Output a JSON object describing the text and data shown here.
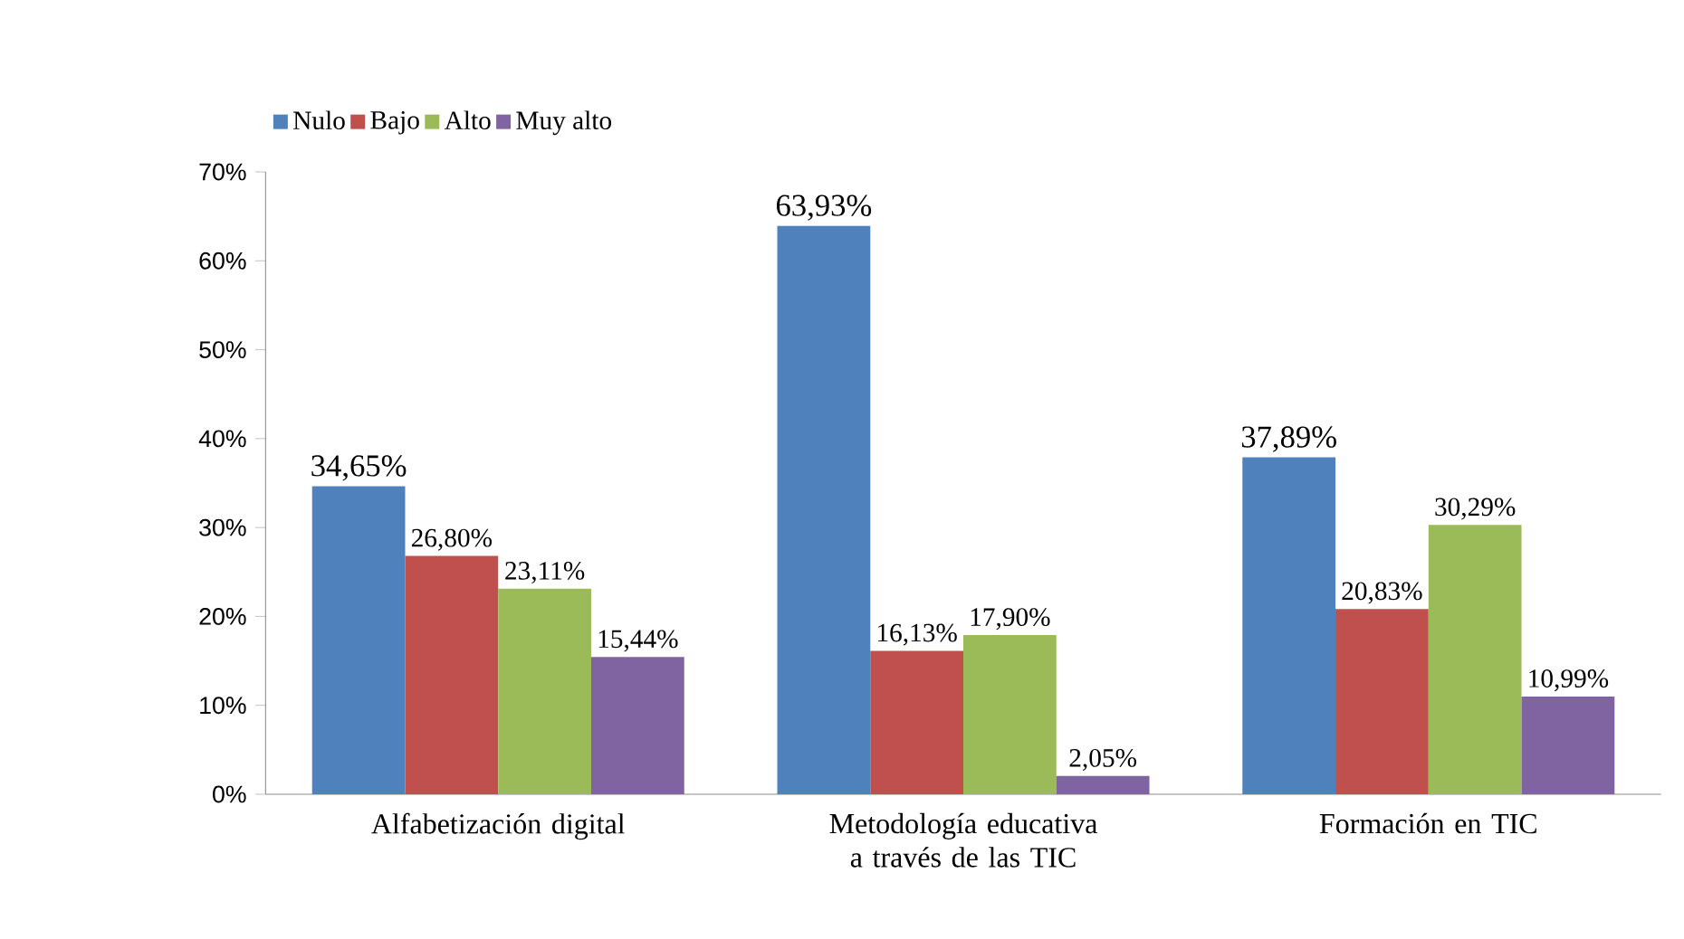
{
  "chart_data": {
    "type": "bar",
    "categories": [
      "Alfabetización digital",
      "Metodología educativa a través de las TIC",
      "Formación en TIC"
    ],
    "series": [
      {
        "name": "Nulo",
        "color": "#4f81bd",
        "values": [
          34.65,
          63.93,
          37.89
        ],
        "value_labels": [
          "34,65%",
          "63,93%",
          "37,89%"
        ]
      },
      {
        "name": "Bajo",
        "color": "#c0504d",
        "values": [
          26.8,
          16.13,
          20.83
        ],
        "value_labels": [
          "26,80%",
          "16,13%",
          "20,83%"
        ]
      },
      {
        "name": "Alto",
        "color": "#9bbb59",
        "values": [
          23.11,
          17.9,
          30.29
        ],
        "value_labels": [
          "23,11%",
          "17,90%",
          "30,29%"
        ]
      },
      {
        "name": "Muy alto",
        "color": "#8064a2",
        "values": [
          15.44,
          2.05,
          10.99
        ],
        "value_labels": [
          "15,44%",
          "2,05%",
          "10,99%"
        ]
      }
    ],
    "ylim": [
      0,
      70
    ],
    "yticks": [
      {
        "value": 0,
        "label": "0%"
      },
      {
        "value": 10,
        "label": "10%"
      },
      {
        "value": 20,
        "label": "20%"
      },
      {
        "value": 30,
        "label": "30%"
      },
      {
        "value": 40,
        "label": "40%"
      },
      {
        "value": 50,
        "label": "50%"
      },
      {
        "value": 60,
        "label": "60%"
      },
      {
        "value": 70,
        "label": "70%"
      }
    ],
    "grid": false,
    "legend": "top left"
  }
}
